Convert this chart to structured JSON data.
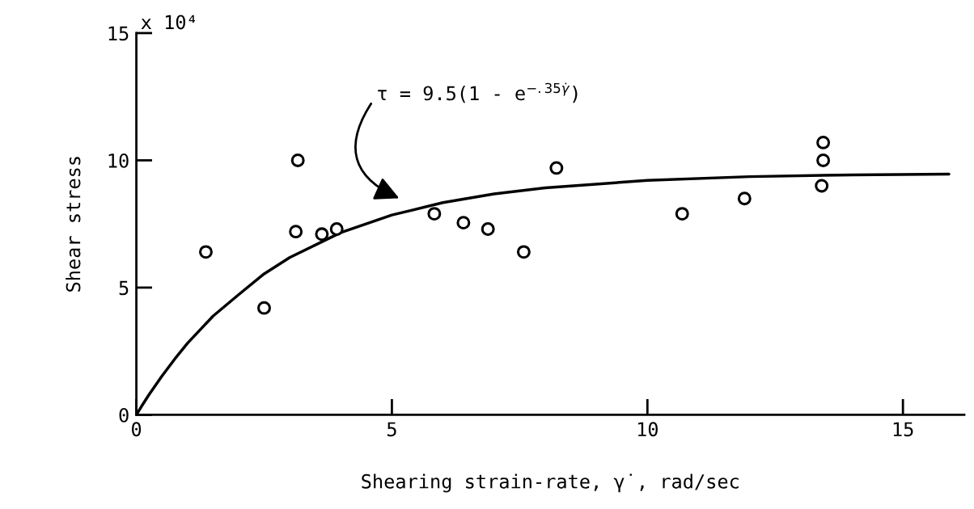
{
  "chart_data": {
    "type": "scatter",
    "xlabel": "Shearing strain-rate, γ̇, rad/sec",
    "ylabel": "Shear stress",
    "xlim": [
      0,
      16.2
    ],
    "ylim": [
      0,
      15
    ],
    "xticks": [
      0,
      5,
      10,
      15
    ],
    "yticks": [
      0,
      5,
      10,
      15
    ],
    "grid": false,
    "series": [
      {
        "color": "#000000",
        "marker": "circle",
        "x": [
          1.36,
          2.5,
          3.16,
          3.12,
          3.63,
          3.92,
          5.83,
          6.4,
          6.88,
          7.58,
          8.22,
          10.68,
          11.9,
          13.41,
          13.44,
          13.44
        ],
        "values": [
          6.4,
          4.2,
          10.0,
          7.2,
          7.1,
          7.3,
          7.9,
          7.55,
          7.3,
          6.4,
          9.7,
          7.9,
          8.5,
          9.0,
          10.0,
          10.7
        ]
      },
      {
        "type": "line",
        "color": "#000000",
        "line_style": "solid",
        "x": [
          0,
          0.1,
          0.25,
          0.5,
          0.75,
          1,
          1.5,
          2,
          2.5,
          3,
          4,
          5,
          6,
          7,
          8,
          10,
          12,
          14,
          15.9
        ],
        "values": [
          0,
          0.33,
          0.8,
          1.52,
          2.19,
          2.81,
          3.88,
          4.72,
          5.54,
          6.18,
          7.16,
          7.85,
          8.34,
          8.68,
          8.92,
          9.21,
          9.36,
          9.43,
          9.46
        ]
      }
    ],
    "annotations": [
      "x 10⁴",
      "τ = 9.5(1 - e$^{−.35γ̇}$)"
    ]
  }
}
